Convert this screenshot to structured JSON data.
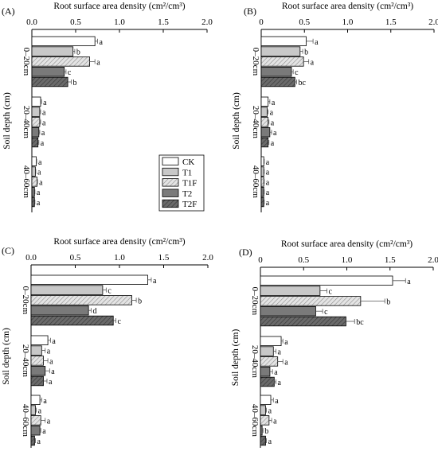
{
  "chart_data": [
    {
      "type": "bar",
      "panel_label": "(A)",
      "title": "Root surface area density (cm²/cm³)",
      "ylabel": "Soil depth (cm)",
      "xlim": [
        0,
        2.0
      ],
      "xticks": [
        "0.0",
        "0.5",
        "1.0",
        "1.5",
        "2.0"
      ],
      "categories": [
        "0–20cm",
        "20–40cm",
        "40–60cm"
      ],
      "legend": true,
      "legend_position": "right, beside 40–60cm group",
      "series": [
        {
          "name": "CK",
          "values": [
            0.72,
            0.1,
            0.05
          ],
          "error": [
            0.03,
            0.01,
            0.005
          ],
          "letters": [
            "a",
            "a",
            "a"
          ]
        },
        {
          "name": "T1",
          "values": [
            0.47,
            0.09,
            0.04
          ],
          "error": [
            0.02,
            0.01,
            0.005
          ],
          "letters": [
            "b",
            "a",
            "a"
          ]
        },
        {
          "name": "T1F",
          "values": [
            0.66,
            0.09,
            0.06
          ],
          "error": [
            0.06,
            0.01,
            0.005
          ],
          "letters": [
            "a",
            "a",
            "a"
          ]
        },
        {
          "name": "T2",
          "values": [
            0.37,
            0.08,
            0.03
          ],
          "error": [
            0.02,
            0.01,
            0.005
          ],
          "letters": [
            "c",
            "a",
            "a"
          ]
        },
        {
          "name": "T2F",
          "values": [
            0.41,
            0.07,
            0.03
          ],
          "error": [
            0.04,
            0.01,
            0.005
          ],
          "letters": [
            "b",
            "a",
            "a"
          ]
        }
      ]
    },
    {
      "type": "bar",
      "panel_label": "(B)",
      "title": "Root surface area density (cm²/cm³)",
      "ylabel": "Soil depth (cm)",
      "xlim": [
        0,
        2.0
      ],
      "xticks": [
        "0",
        "0.5",
        "1.0",
        "1.5",
        "2.0"
      ],
      "categories": [
        "0–20cm",
        "20–40cm",
        "40–60cm"
      ],
      "legend": false,
      "series": [
        {
          "name": "CK",
          "values": [
            0.52,
            0.08,
            0.03
          ],
          "error": [
            0.08,
            0.02,
            0.005
          ],
          "letters": [
            "a",
            "a",
            "a"
          ]
        },
        {
          "name": "T1",
          "values": [
            0.45,
            0.07,
            0.03
          ],
          "error": [
            0.03,
            0.01,
            0.005
          ],
          "letters": [
            "b",
            "a",
            "a"
          ]
        },
        {
          "name": "T1F",
          "values": [
            0.49,
            0.08,
            0.03
          ],
          "error": [
            0.06,
            0.01,
            0.005
          ],
          "letters": [
            "a",
            "a",
            "a"
          ]
        },
        {
          "name": "T2",
          "values": [
            0.35,
            0.1,
            0.03
          ],
          "error": [
            0.02,
            0.02,
            0.005
          ],
          "letters": [
            "c",
            "a",
            "a"
          ]
        },
        {
          "name": "T2F",
          "values": [
            0.39,
            0.08,
            0.03
          ],
          "error": [
            0.02,
            0.01,
            0.005
          ],
          "letters": [
            "bc",
            "a",
            "a"
          ]
        }
      ]
    },
    {
      "type": "bar",
      "panel_label": "(C)",
      "title": "Root surface area density (cm²/cm³)",
      "ylabel": "Soil depth (cm)",
      "xlim": [
        0,
        2.0
      ],
      "xticks": [
        "0.0",
        "0.5",
        "1.0",
        "1.5",
        "2.0"
      ],
      "categories": [
        "0–20cm",
        "20–40cm",
        "40–60cm"
      ],
      "legend": false,
      "series": [
        {
          "name": "CK",
          "values": [
            1.32,
            0.19,
            0.1
          ],
          "error": [
            0.04,
            0.03,
            0.02
          ],
          "letters": [
            "a",
            "a",
            "a"
          ]
        },
        {
          "name": "T1",
          "values": [
            0.81,
            0.12,
            0.05
          ],
          "error": [
            0.04,
            0.04,
            0.01
          ],
          "letters": [
            "c",
            "a",
            "a"
          ]
        },
        {
          "name": "T1F",
          "values": [
            1.14,
            0.14,
            0.11
          ],
          "error": [
            0.05,
            0.05,
            0.05
          ],
          "letters": [
            "b",
            "a",
            "a"
          ]
        },
        {
          "name": "T2",
          "values": [
            0.65,
            0.16,
            0.1
          ],
          "error": [
            0.03,
            0.05,
            0.01
          ],
          "letters": [
            "d",
            "a",
            "a"
          ]
        },
        {
          "name": "T2F",
          "values": [
            0.93,
            0.14,
            0.04
          ],
          "error": [
            0.03,
            0.04,
            0.01
          ],
          "letters": [
            "c",
            "a",
            "a"
          ]
        }
      ]
    },
    {
      "type": "bar",
      "panel_label": "(D)",
      "title": "Root surface area density (cm²/cm³)",
      "ylabel": "Soil depth (cm)",
      "xlim": [
        0,
        2.0
      ],
      "xticks": [
        "0",
        "0.5",
        "1.0",
        "1.5",
        "2.0"
      ],
      "categories": [
        "0–20cm",
        "20–40cm",
        "40–60cm"
      ],
      "legend": false,
      "series": [
        {
          "name": "CK",
          "values": [
            1.53,
            0.24,
            0.12
          ],
          "error": [
            0.15,
            0.02,
            0.03
          ],
          "letters": [
            "a",
            "a",
            "a"
          ]
        },
        {
          "name": "T1",
          "values": [
            0.69,
            0.15,
            0.06
          ],
          "error": [
            0.08,
            0.03,
            0.01
          ],
          "letters": [
            "c",
            "a",
            "a"
          ]
        },
        {
          "name": "T1F",
          "values": [
            1.16,
            0.2,
            0.1
          ],
          "error": [
            0.28,
            0.06,
            0.03
          ],
          "letters": [
            "b",
            "a",
            "a"
          ]
        },
        {
          "name": "T2",
          "values": [
            0.64,
            0.11,
            0.02
          ],
          "error": [
            0.08,
            0.03,
            0.01
          ],
          "letters": [
            "c",
            "a",
            "b"
          ]
        },
        {
          "name": "T2F",
          "values": [
            0.99,
            0.16,
            0.06
          ],
          "error": [
            0.1,
            0.02,
            0.01
          ],
          "letters": [
            "bc",
            "a",
            "a"
          ]
        }
      ]
    }
  ],
  "series_styles": {
    "CK": {
      "fill": "#ffffff",
      "pattern": "none"
    },
    "T1": {
      "fill": "#c8c8c8",
      "pattern": "none"
    },
    "T1F": {
      "fill": "#e4e4e4",
      "pattern": "hatch-light"
    },
    "T2": {
      "fill": "#7a7a7a",
      "pattern": "none"
    },
    "T2F": {
      "fill": "#6a6a6a",
      "pattern": "hatch-dark"
    }
  }
}
